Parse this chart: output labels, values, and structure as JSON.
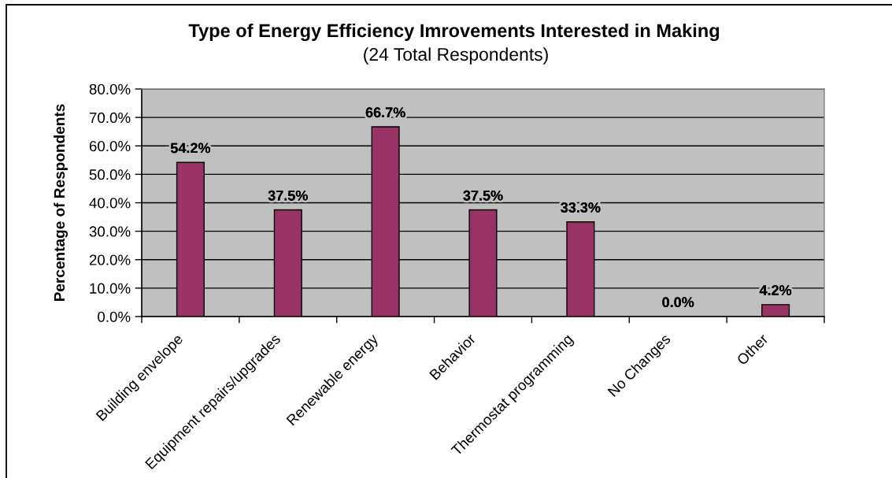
{
  "chart_data": {
    "type": "bar",
    "title": "Type of Energy Efficiency Imrovements Interested in Making",
    "subtitle": "(24 Total Respondents)",
    "ylabel": "Percentage of Respondents",
    "categories": [
      "Building envelope",
      "Equipment repairs/upgrades",
      "Renewable energy",
      "Behavior",
      "Thermostat programming",
      "No Changes",
      "Other"
    ],
    "values": [
      54.2,
      37.5,
      66.7,
      37.5,
      33.3,
      0.0,
      4.2
    ],
    "value_labels": [
      "54.2%",
      "37.5%",
      "66.7%",
      "37.5%",
      "33.3%",
      "0.0%",
      "4.2%"
    ],
    "color": "#993366",
    "ylim": [
      0,
      80
    ],
    "yticks": [
      {
        "value": 0,
        "label": "0.0%"
      },
      {
        "value": 10,
        "label": "10.0%"
      },
      {
        "value": 20,
        "label": "20.0%"
      },
      {
        "value": 30,
        "label": "30.0%"
      },
      {
        "value": 40,
        "label": "40.0%"
      },
      {
        "value": 50,
        "label": "50.0%"
      },
      {
        "value": 60,
        "label": "60.0%"
      },
      {
        "value": 70,
        "label": "70.0%"
      },
      {
        "value": 80,
        "label": "80.0%"
      }
    ],
    "grid": "y"
  }
}
